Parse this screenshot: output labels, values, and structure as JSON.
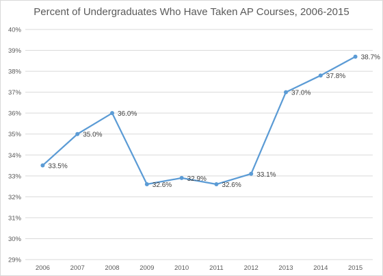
{
  "chart_data": {
    "type": "line",
    "title": "Percent of Undergraduates Who Have Taken AP Courses, 2006-2015",
    "xlabel": "",
    "ylabel": "",
    "categories": [
      "2006",
      "2007",
      "2008",
      "2009",
      "2010",
      "2011",
      "2012",
      "2013",
      "2014",
      "2015"
    ],
    "series": [
      {
        "values": [
          33.5,
          35.0,
          36.0,
          32.6,
          32.9,
          32.6,
          33.1,
          37.0,
          37.8,
          38.7
        ],
        "data_labels": [
          "33.5%",
          "35.0%",
          "36.0%",
          "32.6%",
          "32.9%",
          "32.6%",
          "33.1%",
          "37.0%",
          "37.8%",
          "38.7%"
        ],
        "color": "#5b9bd5"
      }
    ],
    "ylim": [
      29,
      40
    ],
    "y_ticks": [
      29,
      30,
      31,
      32,
      33,
      34,
      35,
      36,
      37,
      38,
      39,
      40
    ],
    "y_tick_labels": [
      "29%",
      "30%",
      "31%",
      "32%",
      "33%",
      "34%",
      "35%",
      "36%",
      "37%",
      "38%",
      "39%",
      "40%"
    ],
    "grid": true,
    "gridline_color": "#d9d9d9",
    "legend": "none"
  }
}
